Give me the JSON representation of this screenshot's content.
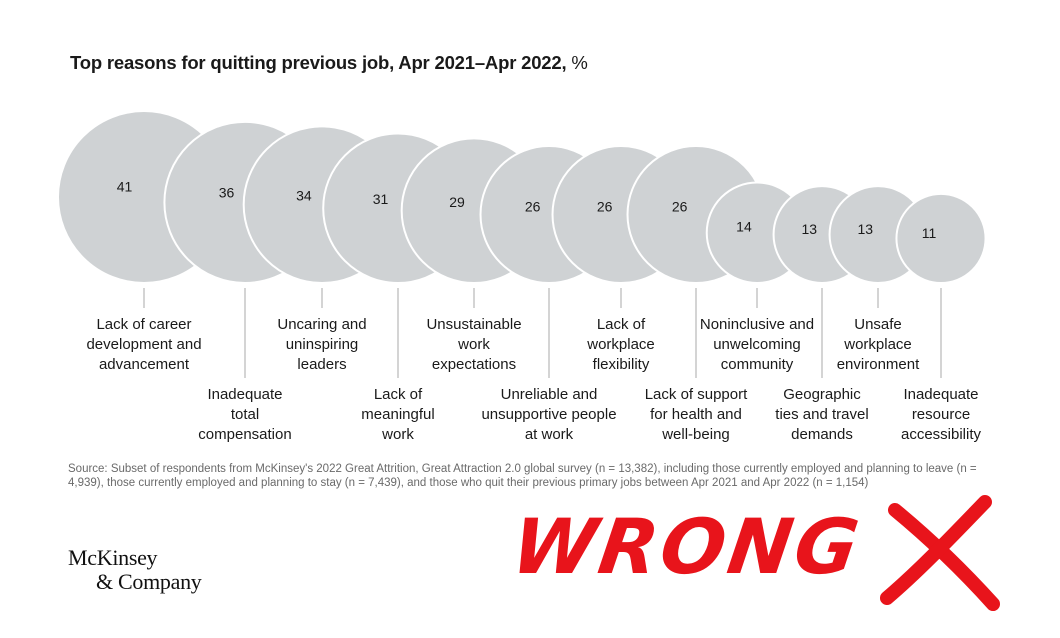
{
  "title": {
    "main": "Top reasons for quitting previous job, Apr 2021–Apr 2022,",
    "unit": " %"
  },
  "chart_data": {
    "type": "bubble",
    "title": "Top reasons for quitting previous job, Apr 2021–Apr 2022, %",
    "unit": "%",
    "categories": [
      "Lack of career development and advancement",
      "Inadequate total compensation",
      "Uncaring and uninspiring leaders",
      "Lack of meaningful work",
      "Unsustainable work expectations",
      "Unreliable and unsupportive people at work",
      "Lack of workplace flexibility",
      "Lack of support for health and well-being",
      "Noninclusive and unwelcoming community",
      "Geographic ties and travel demands",
      "Unsafe workplace environment",
      "Inadequate resource accessibility"
    ],
    "values": [
      41,
      36,
      34,
      31,
      29,
      26,
      26,
      26,
      14,
      13,
      13,
      11
    ],
    "label_rows": [
      "top",
      "bottom",
      "top",
      "bottom",
      "top",
      "bottom",
      "top",
      "bottom",
      "top",
      "bottom",
      "top",
      "bottom"
    ],
    "label_lines": [
      [
        "Lack of career",
        "development and",
        "advancement"
      ],
      [
        "Inadequate",
        "total",
        "compensation"
      ],
      [
        "Uncaring and",
        "uninspiring",
        "leaders"
      ],
      [
        "Lack of",
        "meaningful",
        "work"
      ],
      [
        "Unsustainable",
        "work",
        "expectations"
      ],
      [
        "Unreliable and",
        "unsupportive people",
        "at work"
      ],
      [
        "Lack of",
        "workplace",
        "flexibility"
      ],
      [
        "Lack of support",
        "for health and",
        "well-being"
      ],
      [
        "Noninclusive and",
        "unwelcoming",
        "community"
      ],
      [
        "Geographic",
        "ties and travel",
        "demands"
      ],
      [
        "Unsafe",
        "workplace",
        "environment"
      ],
      [
        "Inadequate",
        "resource",
        "accessibility"
      ]
    ],
    "bubble_color": "#cfd2d4",
    "bubble_stroke": "#ffffff",
    "connector_color": "#b8b8b8"
  },
  "source": "Source: Subset of respondents from McKinsey's 2022 Great Attrition, Great Attraction 2.0 global survey (n = 13,382), including those currently employed and planning to leave (n = 4,939), those currently employed and planning to stay (n = 7,439), and those who quit their previous primary jobs between Apr 2021 and Apr 2022 (n = 1,154)",
  "logo": {
    "line1": "McKinsey",
    "line2": "& Company"
  },
  "overlay": {
    "text": "WRONG",
    "color": "#e8141b"
  }
}
